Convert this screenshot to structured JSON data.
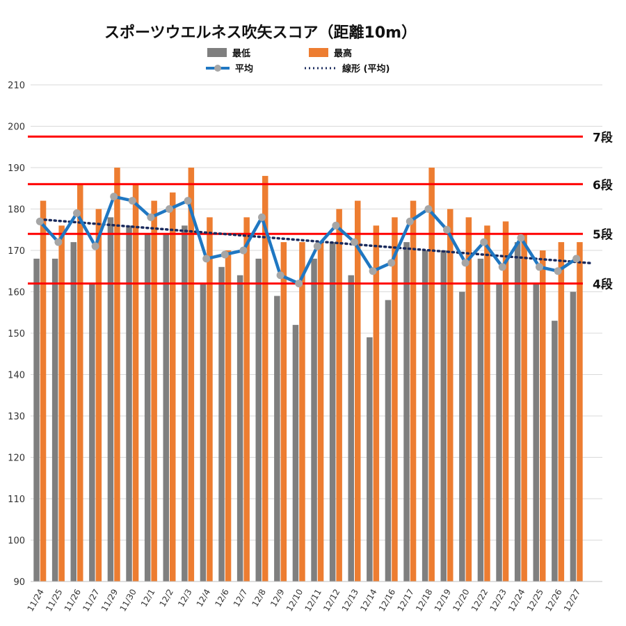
{
  "chart_data": {
    "type": "bar",
    "title": "スポーツウエルネス吹矢スコア（距離10m）",
    "categories": [
      "11/24",
      "11/25",
      "11/26",
      "11/27",
      "11/29",
      "11/30",
      "12/1",
      "12/2",
      "12/3",
      "12/4",
      "12/6",
      "12/7",
      "12/8",
      "12/9",
      "12/10",
      "12/11",
      "12/12",
      "12/13",
      "12/14",
      "12/16",
      "12/17",
      "12/18",
      "12/19",
      "12/20",
      "12/22",
      "12/23",
      "12/24",
      "12/25",
      "12/26",
      "12/27"
    ],
    "series": [
      {
        "name": "最低",
        "type": "bar",
        "color": "#7f7f7f",
        "values": [
          168,
          168,
          172,
          162,
          178,
          176,
          174,
          174,
          176,
          162,
          166,
          164,
          168,
          159,
          152,
          168,
          172,
          164,
          149,
          158,
          172,
          170,
          170,
          160,
          168,
          162,
          172,
          162,
          153,
          160
        ]
      },
      {
        "name": "最高",
        "type": "bar",
        "color": "#ed7d31",
        "values": [
          182,
          176,
          186,
          180,
          190,
          186,
          182,
          184,
          190,
          178,
          170,
          178,
          188,
          172,
          172,
          172,
          180,
          182,
          176,
          178,
          182,
          190,
          180,
          178,
          176,
          177,
          174,
          170,
          172,
          172
        ]
      },
      {
        "name": "平均",
        "type": "line",
        "color": "#1f77c2",
        "marker_color": "#a6a6a6",
        "values": [
          177,
          172,
          179,
          171,
          183,
          182,
          178,
          180,
          182,
          168,
          169,
          170,
          178,
          164,
          162,
          171,
          176,
          172,
          165,
          167,
          177,
          180,
          175,
          167,
          172,
          166,
          173,
          166,
          165,
          168
        ]
      },
      {
        "name": "線形 (平均)",
        "type": "trendline",
        "color": "#1a2a5c",
        "style": "dotted",
        "start": 177.5,
        "end": 167.2
      }
    ],
    "ylim": [
      90,
      210
    ],
    "yticks": [
      90,
      100,
      110,
      120,
      130,
      140,
      150,
      160,
      170,
      180,
      190,
      200,
      210
    ],
    "reference_lines": [
      {
        "label": "7段",
        "value": 197.5,
        "color": "#ff0000"
      },
      {
        "label": "6段",
        "value": 186,
        "color": "#ff0000"
      },
      {
        "label": "5段",
        "value": 174,
        "color": "#ff0000"
      },
      {
        "label": "4段",
        "value": 162,
        "color": "#ff0000"
      }
    ],
    "grid": true,
    "legend": "top"
  }
}
